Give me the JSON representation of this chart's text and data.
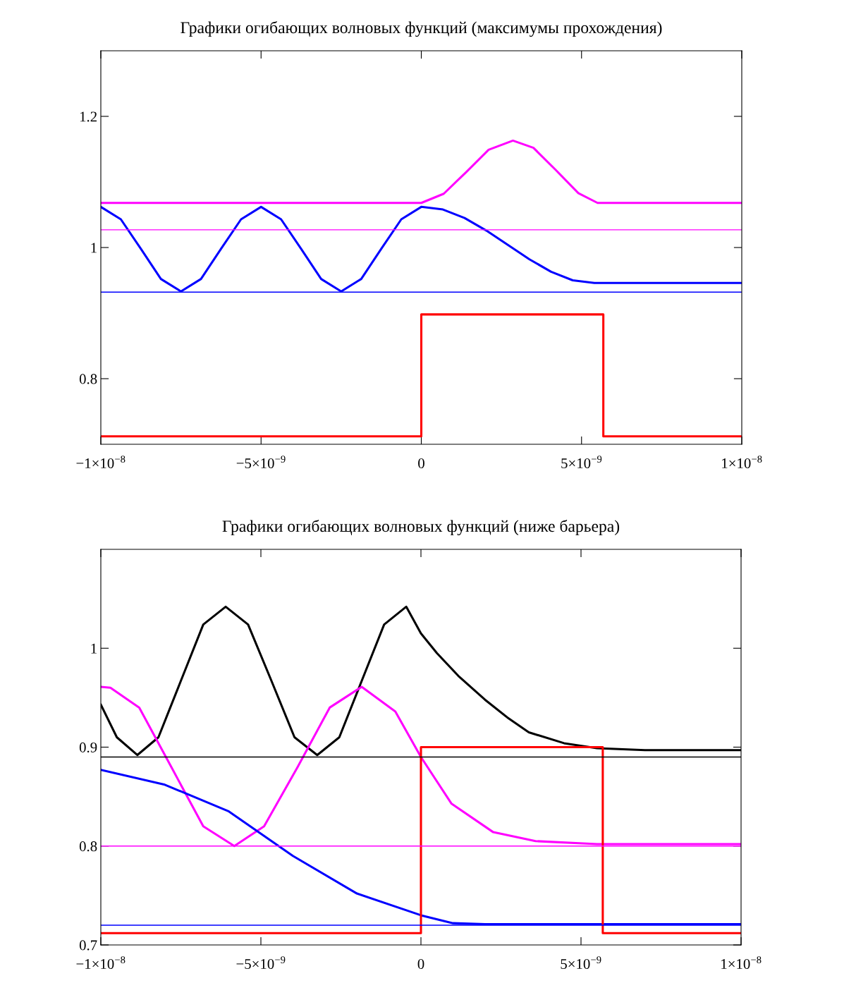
{
  "chart_data": [
    {
      "type": "line",
      "title": "Графики огибающих волновых функций (максимумы прохождения)",
      "xlim": [
        -1e-08,
        1e-08
      ],
      "ylim": [
        0.7,
        1.3
      ],
      "xticks": [
        {
          "value": -1e-08,
          "label": "−1×10$^{−8}$"
        },
        {
          "value": -5e-09,
          "label": "−5×10$^{−9}$"
        },
        0,
        {
          "value": 5e-09,
          "label": "5×10$^{−9}$"
        },
        {
          "value": 1e-08,
          "label": "1×10$^{−8}$"
        }
      ],
      "yticks": [
        0.8,
        1,
        1.2
      ],
      "grid": false,
      "ref_lines": [
        {
          "axis": "y",
          "value": 1.027,
          "color": "#ff00ff"
        },
        {
          "axis": "y",
          "value": 0.932,
          "color": "#0000ff"
        }
      ],
      "series": [
        {
          "color": "#ff00ff",
          "x": [
            -1e-08,
            0,
            7e-10,
            1.4e-09,
            2.1e-09,
            2.86e-09,
            3.5e-09,
            4.2e-09,
            4.9e-09,
            5.5e-09,
            1e-08
          ],
          "values": [
            1.068,
            1.068,
            1.082,
            1.115,
            1.149,
            1.163,
            1.152,
            1.118,
            1.083,
            1.068,
            1.068
          ]
        },
        {
          "color": "#0000ff",
          "x": [
            -1e-08,
            -9.375e-09,
            -8.75e-09,
            -8.125e-09,
            -7.5e-09,
            -6.875e-09,
            -6.25e-09,
            -5.625e-09,
            -5e-09,
            -4.375e-09,
            -3.75e-09,
            -3.125e-09,
            -2.5e-09,
            -1.875e-09,
            -1.25e-09,
            -6.25e-10,
            0,
            6.75e-10,
            1.35e-09,
            2.025e-09,
            2.7e-09,
            3.375e-09,
            4.05e-09,
            4.725e-09,
            5.4e-09,
            1e-08
          ],
          "values": [
            1.062,
            1.043,
            0.998,
            0.952,
            0.933,
            0.952,
            0.998,
            1.043,
            1.062,
            1.043,
            0.998,
            0.952,
            0.933,
            0.952,
            0.998,
            1.043,
            1.062,
            1.058,
            1.045,
            1.026,
            1.004,
            0.982,
            0.963,
            0.95,
            0.946,
            0.946
          ]
        },
        {
          "color": "#ff0000",
          "x": [
            -1e-08,
            0,
            0,
            5.68e-09,
            5.68e-09,
            1e-08
          ],
          "values": [
            0.712,
            0.712,
            0.898,
            0.898,
            0.712,
            0.712
          ]
        }
      ]
    },
    {
      "type": "line",
      "title": "Графики огибающих волновых функций (ниже барьера)",
      "xlim": [
        -1e-08,
        1e-08
      ],
      "ylim": [
        0.7,
        1.1
      ],
      "xticks": [
        {
          "value": -1e-08,
          "label": "−1×10$^{−8}$"
        },
        {
          "value": -5e-09,
          "label": "−5×10$^{−9}$"
        },
        0,
        {
          "value": 5e-09,
          "label": "5×10$^{−9}$"
        },
        {
          "value": 1e-08,
          "label": "1×10$^{−8}$"
        }
      ],
      "yticks": [
        0.7,
        0.8,
        0.9,
        1
      ],
      "grid": false,
      "ref_lines": [
        {
          "axis": "y",
          "value": 0.89,
          "color": "#000000"
        },
        {
          "axis": "y",
          "value": 0.8,
          "color": "#ff00ff"
        },
        {
          "axis": "y",
          "value": 0.72,
          "color": "#0000ff"
        }
      ],
      "series": [
        {
          "color": "#000000",
          "x": [
            -1e-08,
            -9.5e-09,
            -8.86e-09,
            -8.2e-09,
            -7.5e-09,
            -6.8e-09,
            -6.1e-09,
            -5.4e-09,
            -4.67e-09,
            -3.95e-09,
            -3.24e-09,
            -2.55e-09,
            -1.85e-09,
            -1.15e-09,
            -4.6e-10,
            0,
            5e-10,
            1.17e-09,
            2e-09,
            2.7e-09,
            3.37e-09,
            4.47e-09,
            5.5e-09,
            7e-09,
            1e-08
          ],
          "values": [
            0.943,
            0.91,
            0.892,
            0.91,
            0.967,
            1.024,
            1.042,
            1.024,
            0.967,
            0.91,
            0.892,
            0.91,
            0.967,
            1.024,
            1.042,
            1.015,
            0.995,
            0.972,
            0.948,
            0.93,
            0.915,
            0.904,
            0.899,
            0.897,
            0.897
          ]
        },
        {
          "color": "#ff00ff",
          "x": [
            -1e-08,
            -9.7e-09,
            -8.8e-09,
            -7.8e-09,
            -6.8e-09,
            -5.83e-09,
            -4.9e-09,
            -3.85e-09,
            -2.85e-09,
            -1.85e-09,
            -8e-10,
            0,
            9.5e-10,
            2.26e-09,
            3.58e-09,
            5.5e-09,
            1e-08
          ],
          "values": [
            0.961,
            0.96,
            0.94,
            0.88,
            0.82,
            0.8,
            0.82,
            0.88,
            0.94,
            0.961,
            0.936,
            0.89,
            0.843,
            0.814,
            0.805,
            0.802,
            0.802
          ]
        },
        {
          "color": "#0000ff",
          "x": [
            -1e-08,
            -8e-09,
            -6e-09,
            -4e-09,
            -2e-09,
            0,
            1e-09,
            2e-09,
            1e-08
          ],
          "values": [
            0.877,
            0.862,
            0.835,
            0.79,
            0.752,
            0.73,
            0.722,
            0.721,
            0.721
          ]
        },
        {
          "color": "#ff0000",
          "x": [
            -1e-08,
            0,
            0,
            5.68e-09,
            5.68e-09,
            1e-08
          ],
          "values": [
            0.712,
            0.712,
            0.9,
            0.9,
            0.712,
            0.712
          ]
        }
      ]
    }
  ]
}
